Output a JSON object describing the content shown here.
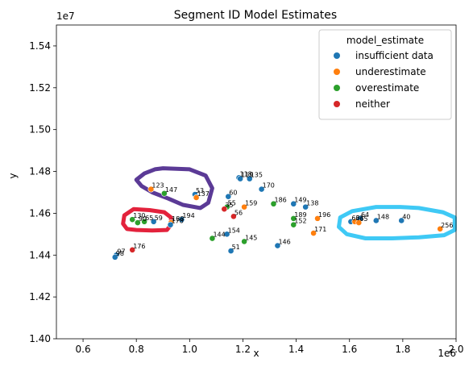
{
  "chart_data": {
    "type": "scatter",
    "title": "Segment ID Model Estimates",
    "xlabel": "x",
    "ylabel": "y",
    "xlim": [
      500000,
      2000000
    ],
    "ylim": [
      14000000,
      15500000
    ],
    "x_offset_label": "1e6",
    "y_offset_label": "1e7",
    "x_ticks": [
      600000,
      800000,
      1000000,
      1200000,
      1400000,
      1600000,
      1800000,
      2000000
    ],
    "x_tick_labels": [
      "0.6",
      "0.8",
      "1.0",
      "1.2",
      "1.4",
      "1.6",
      "1.8",
      "2.0"
    ],
    "y_ticks": [
      14000000,
      14200000,
      14400000,
      14600000,
      14800000,
      15000000,
      15200000,
      15400000
    ],
    "y_tick_labels": [
      "1.40",
      "1.42",
      "1.44",
      "1.46",
      "1.48",
      "1.50",
      "1.52",
      "1.54"
    ],
    "legend": {
      "title": "model_estimate",
      "position": "top-right",
      "entries": [
        {
          "label": "insufficient data",
          "color": "#1f77b4"
        },
        {
          "label": "underestimate",
          "color": "#ff7f0e"
        },
        {
          "label": "overestimate",
          "color": "#2ca02c"
        },
        {
          "label": "neither",
          "color": "#d62728"
        }
      ]
    },
    "points": [
      {
        "label": "97",
        "x": 725000,
        "y": 14400000,
        "cat": "insufficient data"
      },
      {
        "label": "98",
        "x": 720000,
        "y": 14390000,
        "cat": "insufficient data"
      },
      {
        "label": "176",
        "x": 785000,
        "y": 14425000,
        "cat": "neither"
      },
      {
        "label": "130",
        "x": 785000,
        "y": 14570000,
        "cat": "overestimate"
      },
      {
        "label": "90",
        "x": 805000,
        "y": 14555000,
        "cat": "overestimate"
      },
      {
        "label": "65",
        "x": 830000,
        "y": 14560000,
        "cat": "overestimate"
      },
      {
        "label": "59",
        "x": 865000,
        "y": 14560000,
        "cat": "insufficient data"
      },
      {
        "label": "123",
        "x": 855000,
        "y": 14715000,
        "cat": "underestimate"
      },
      {
        "label": "147",
        "x": 905000,
        "y": 14695000,
        "cat": "overestimate"
      },
      {
        "label": "188",
        "x": 930000,
        "y": 14555000,
        "cat": "underestimate"
      },
      {
        "label": "178",
        "x": 928000,
        "y": 14545000,
        "cat": "insufficient data"
      },
      {
        "label": "194",
        "x": 970000,
        "y": 14570000,
        "cat": "insufficient data"
      },
      {
        "label": "53",
        "x": 1020000,
        "y": 14690000,
        "cat": "insufficient data"
      },
      {
        "label": "137",
        "x": 1025000,
        "y": 14675000,
        "cat": "underestimate"
      },
      {
        "label": "60",
        "x": 1145000,
        "y": 14680000,
        "cat": "insufficient data"
      },
      {
        "label": "55",
        "x": 1140000,
        "y": 14630000,
        "cat": "overestimate"
      },
      {
        "label": "35",
        "x": 1130000,
        "y": 14620000,
        "cat": "neither"
      },
      {
        "label": "56",
        "x": 1165000,
        "y": 14585000,
        "cat": "neither"
      },
      {
        "label": "159",
        "x": 1205000,
        "y": 14630000,
        "cat": "underestimate"
      },
      {
        "label": "144",
        "x": 1085000,
        "y": 14480000,
        "cat": "overestimate"
      },
      {
        "label": "154",
        "x": 1140000,
        "y": 14500000,
        "cat": "insufficient data"
      },
      {
        "label": "51",
        "x": 1155000,
        "y": 14420000,
        "cat": "insufficient data"
      },
      {
        "label": "145",
        "x": 1205000,
        "y": 14465000,
        "cat": "overestimate"
      },
      {
        "label": "118",
        "x": 1185000,
        "y": 14770000,
        "cat": "insufficient data"
      },
      {
        "label": "119",
        "x": 1190000,
        "y": 14765000,
        "cat": "insufficient data"
      },
      {
        "label": "135",
        "x": 1225000,
        "y": 14765000,
        "cat": "insufficient data"
      },
      {
        "label": "170",
        "x": 1270000,
        "y": 14715000,
        "cat": "insufficient data"
      },
      {
        "label": "186",
        "x": 1315000,
        "y": 14645000,
        "cat": "overestimate"
      },
      {
        "label": "149",
        "x": 1390000,
        "y": 14645000,
        "cat": "insufficient data"
      },
      {
        "label": "138",
        "x": 1435000,
        "y": 14630000,
        "cat": "insufficient data"
      },
      {
        "label": "189",
        "x": 1390000,
        "y": 14575000,
        "cat": "overestimate"
      },
      {
        "label": "152",
        "x": 1390000,
        "y": 14545000,
        "cat": "overestimate"
      },
      {
        "label": "196",
        "x": 1480000,
        "y": 14575000,
        "cat": "underestimate"
      },
      {
        "label": "171",
        "x": 1465000,
        "y": 14505000,
        "cat": "underestimate"
      },
      {
        "label": "146",
        "x": 1330000,
        "y": 14445000,
        "cat": "insufficient data"
      },
      {
        "label": "62",
        "x": 1605000,
        "y": 14560000,
        "cat": "insufficient data"
      },
      {
        "label": "63",
        "x": 1620000,
        "y": 14560000,
        "cat": "underestimate"
      },
      {
        "label": "64",
        "x": 1640000,
        "y": 14575000,
        "cat": "insufficient data"
      },
      {
        "label": "65",
        "x": 1635000,
        "y": 14555000,
        "cat": "underestimate"
      },
      {
        "label": "148",
        "x": 1700000,
        "y": 14565000,
        "cat": "insufficient data"
      },
      {
        "label": "40",
        "x": 1795000,
        "y": 14565000,
        "cat": "insufficient data"
      },
      {
        "label": "256",
        "x": 1940000,
        "y": 14525000,
        "cat": "underestimate"
      }
    ],
    "annotations": [
      {
        "shape": "loop",
        "color": "#5b3a96",
        "points": [
          [
            900000,
            14815000
          ],
          [
            1000000,
            14810000
          ],
          [
            1060000,
            14780000
          ],
          [
            1085000,
            14720000
          ],
          [
            1070000,
            14650000
          ],
          [
            1040000,
            14625000
          ],
          [
            975000,
            14640000
          ],
          [
            920000,
            14670000
          ],
          [
            860000,
            14700000
          ],
          [
            820000,
            14730000
          ],
          [
            800000,
            14760000
          ],
          [
            830000,
            14790000
          ],
          [
            870000,
            14810000
          ],
          [
            900000,
            14815000
          ]
        ]
      },
      {
        "shape": "loop",
        "color": "#e3223c",
        "points": [
          [
            790000,
            14620000
          ],
          [
            850000,
            14615000
          ],
          [
            905000,
            14605000
          ],
          [
            930000,
            14580000
          ],
          [
            930000,
            14545000
          ],
          [
            915000,
            14520000
          ],
          [
            860000,
            14518000
          ],
          [
            800000,
            14520000
          ],
          [
            765000,
            14525000
          ],
          [
            750000,
            14550000
          ],
          [
            755000,
            14590000
          ],
          [
            790000,
            14620000
          ]
        ]
      },
      {
        "shape": "loop",
        "color": "#3fc9f5",
        "points": [
          [
            1610000,
            14610000
          ],
          [
            1700000,
            14630000
          ],
          [
            1790000,
            14630000
          ],
          [
            1860000,
            14625000
          ],
          [
            1950000,
            14605000
          ],
          [
            1995000,
            14580000
          ],
          [
            1995000,
            14520000
          ],
          [
            1955000,
            14495000
          ],
          [
            1860000,
            14485000
          ],
          [
            1760000,
            14480000
          ],
          [
            1660000,
            14480000
          ],
          [
            1590000,
            14500000
          ],
          [
            1560000,
            14535000
          ],
          [
            1565000,
            14580000
          ],
          [
            1610000,
            14610000
          ]
        ]
      }
    ]
  }
}
